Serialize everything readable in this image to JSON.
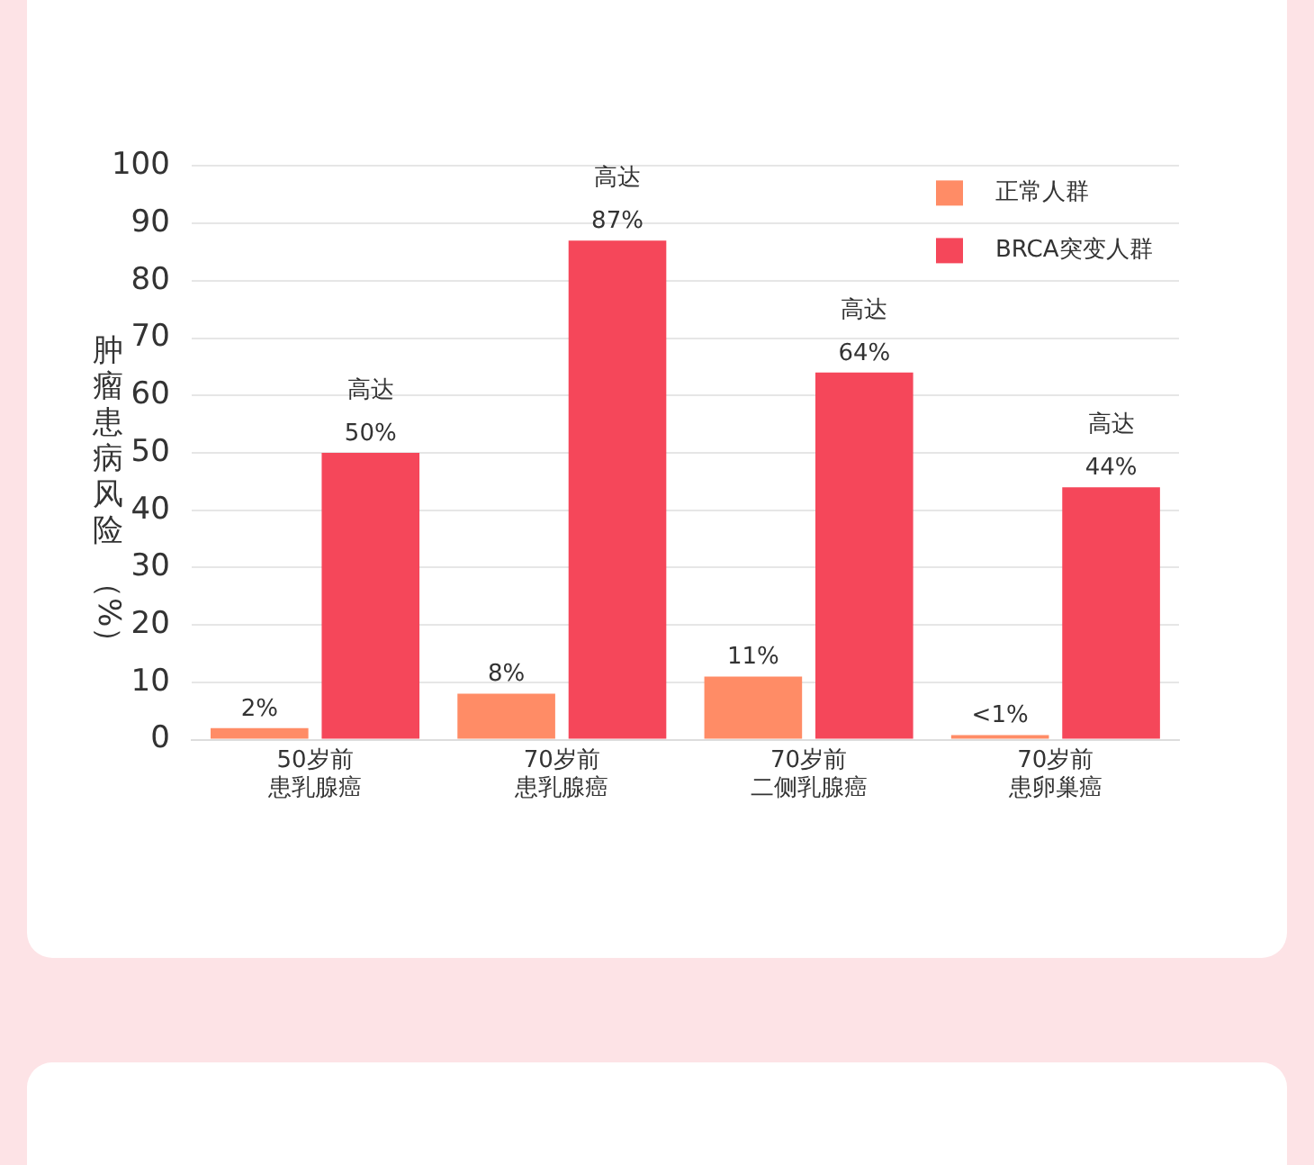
{
  "chart_data": {
    "type": "bar",
    "ylabel": "肿瘤患病风险（%）",
    "categories": [
      "50岁前患乳腺癌",
      "70岁前患乳腺癌",
      "70岁前二侧乳腺癌",
      "70岁前患卵巢癌"
    ],
    "series": [
      {
        "name": "正常人群",
        "color": "#ff8c66",
        "values": [
          2,
          8,
          11,
          0.8
        ],
        "value_labels": [
          "2%",
          "8%",
          "11%",
          "<1%"
        ]
      },
      {
        "name": "BRCA突变人群",
        "color": "#f5475a",
        "values": [
          50,
          87,
          64,
          44
        ],
        "value_labels": [
          "高达\n50%",
          "高达\n87%",
          "高达\n64%",
          "高达\n44%"
        ]
      }
    ],
    "ylim": [
      0,
      100
    ],
    "yticks": [
      0,
      10,
      20,
      30,
      40,
      50,
      60,
      70,
      80,
      90,
      100
    ],
    "grid": "y",
    "legend": "top right"
  }
}
